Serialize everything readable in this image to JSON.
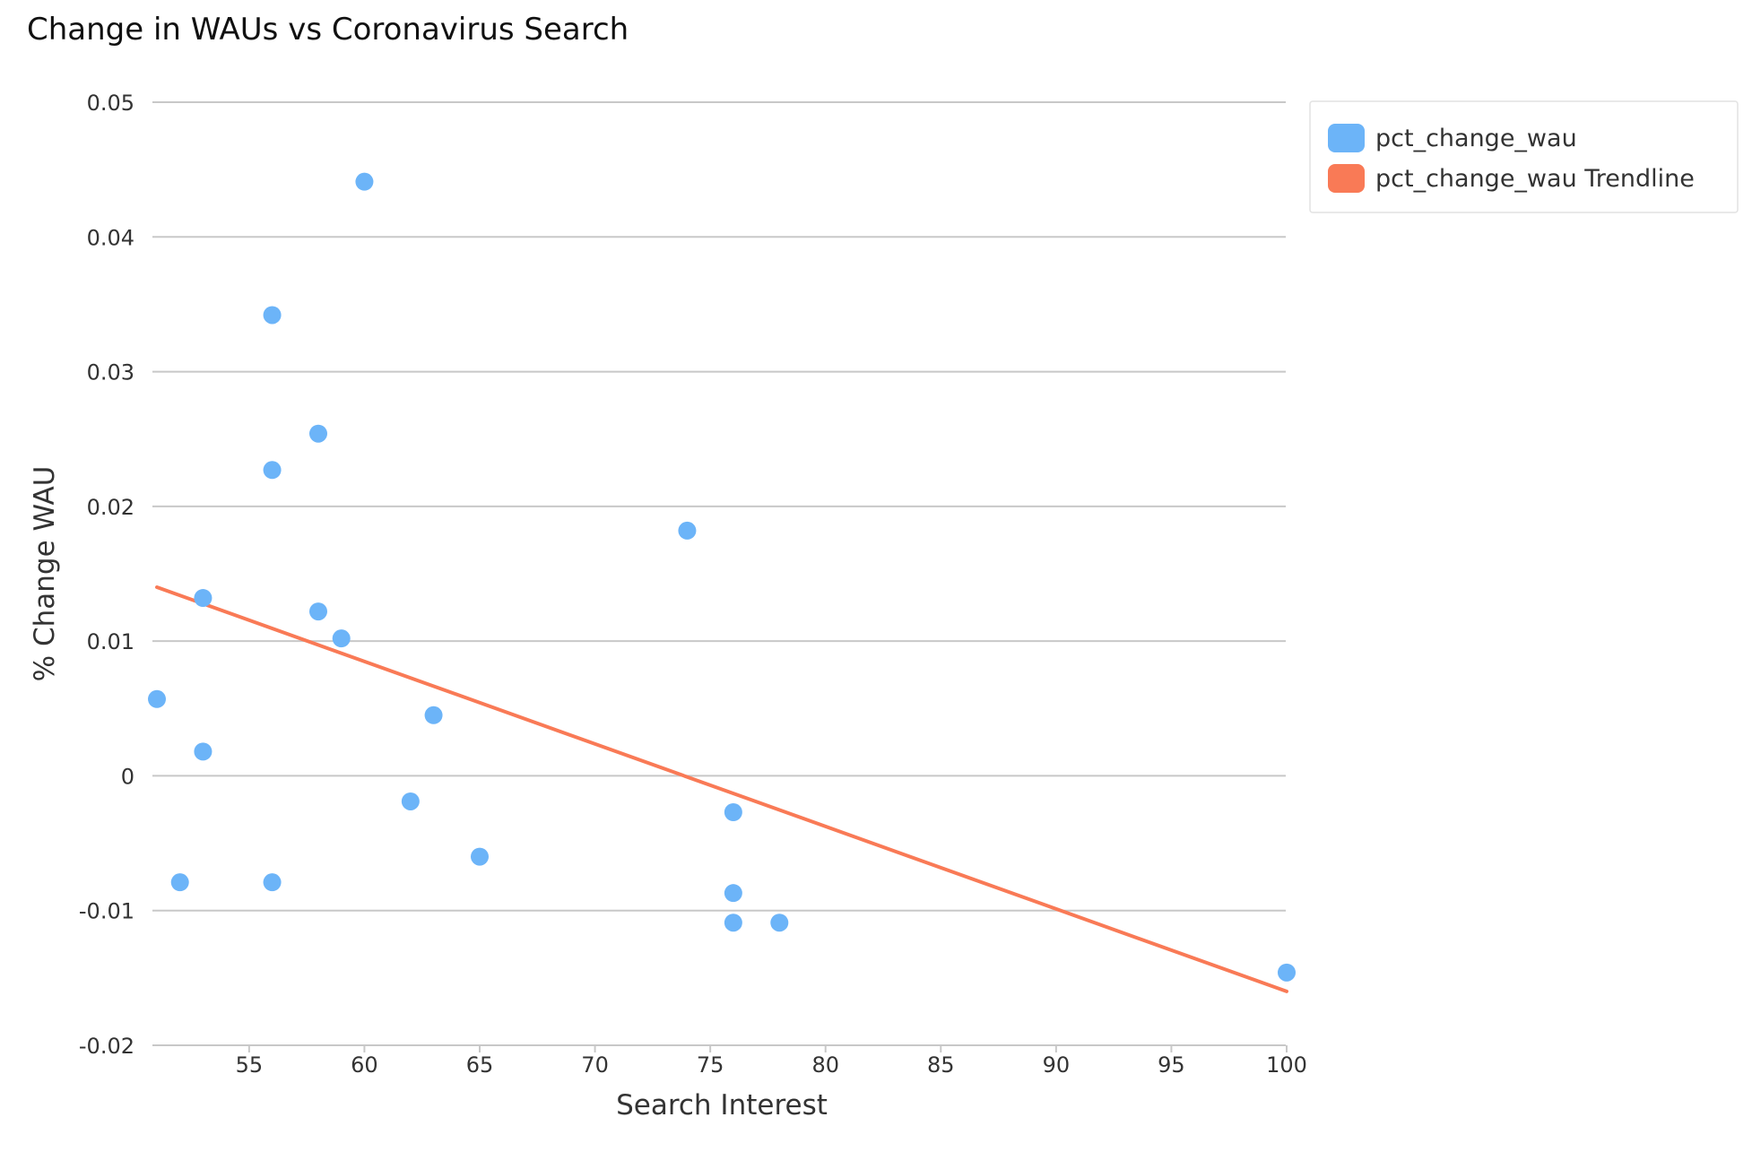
{
  "chart_data": {
    "type": "scatter",
    "title": "Change in WAUs vs Coronavirus Search",
    "xlabel": "Search Interest",
    "ylabel": "% Change WAU",
    "xlim": [
      51,
      100
    ],
    "ylim": [
      -0.02,
      0.05
    ],
    "x_ticks": [
      55,
      60,
      65,
      70,
      75,
      80,
      85,
      90,
      95,
      100
    ],
    "x_tick_labels": [
      "55",
      "60",
      "65",
      "70",
      "75",
      "80",
      "85",
      "90",
      "95",
      "100"
    ],
    "y_ticks": [
      0.05,
      0.04,
      0.03,
      0.02,
      0.01,
      0,
      -0.01,
      -0.02
    ],
    "y_tick_labels": [
      "0.05",
      "0.04",
      "0.03",
      "0.02",
      "0.01",
      "0",
      "-0.01",
      "-0.02"
    ],
    "grid": "horizontal",
    "legend_position": "top-right",
    "series": [
      {
        "name": "pct_change_wau",
        "color": "#6cb4f8",
        "points": [
          {
            "x": 60,
            "y": 0.0441
          },
          {
            "x": 56,
            "y": 0.0342
          },
          {
            "x": 58,
            "y": 0.0254
          },
          {
            "x": 56,
            "y": 0.0227
          },
          {
            "x": 74,
            "y": 0.0182
          },
          {
            "x": 53,
            "y": 0.0132
          },
          {
            "x": 58,
            "y": 0.0122
          },
          {
            "x": 59,
            "y": 0.0102
          },
          {
            "x": 51,
            "y": 0.0057
          },
          {
            "x": 63,
            "y": 0.0045
          },
          {
            "x": 53,
            "y": 0.0018
          },
          {
            "x": 62,
            "y": -0.0019
          },
          {
            "x": 76,
            "y": -0.0027
          },
          {
            "x": 65,
            "y": -0.006
          },
          {
            "x": 52,
            "y": -0.0079
          },
          {
            "x": 56,
            "y": -0.0079
          },
          {
            "x": 76,
            "y": -0.0087
          },
          {
            "x": 76,
            "y": -0.0109
          },
          {
            "x": 78,
            "y": -0.0109
          },
          {
            "x": 100,
            "y": -0.0146
          }
        ]
      },
      {
        "name": "pct_change_wau Trendline",
        "color": "#f97a56",
        "line": [
          {
            "x": 51,
            "y": 0.014
          },
          {
            "x": 100,
            "y": -0.016
          }
        ]
      }
    ]
  },
  "colors": {
    "grid": "#c8c8c8",
    "legend_border": "#e2e2e2"
  }
}
